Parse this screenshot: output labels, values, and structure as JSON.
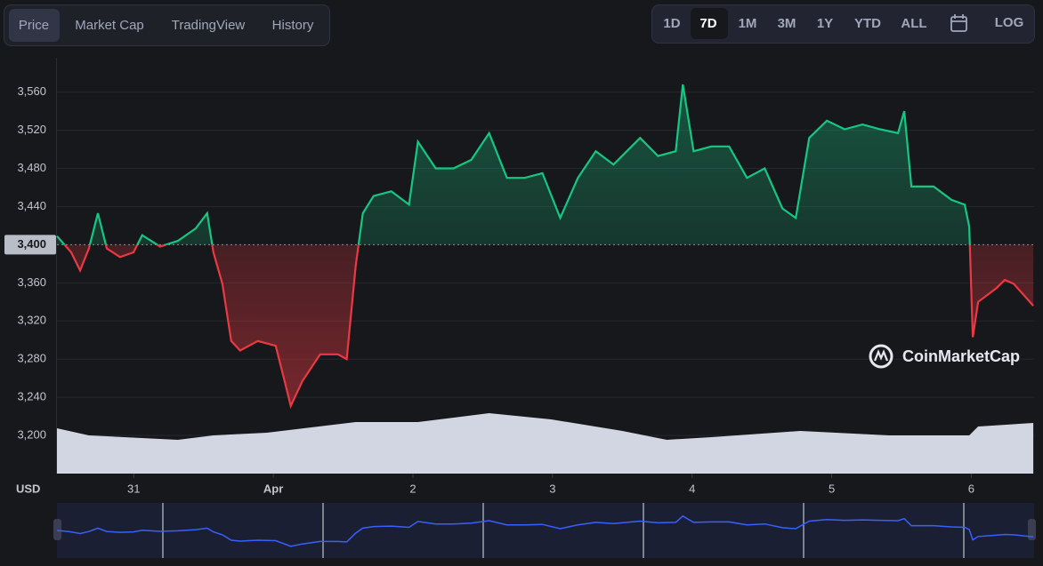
{
  "ui": {
    "tabs": [
      "Price",
      "Market Cap",
      "TradingView",
      "History"
    ],
    "ranges": [
      "1D",
      "7D",
      "1M",
      "3M",
      "1Y",
      "YTD",
      "ALL"
    ],
    "scale_toggle": "LOG",
    "watermark": "CoinMarketCap"
  },
  "chart_data": {
    "type": "line",
    "ylabel": "USD",
    "x": [
      30.45,
      30.552,
      30.616,
      30.679,
      30.743,
      30.807,
      30.902,
      30.998,
      31.061,
      31.189,
      31.316,
      31.444,
      31.526,
      31.571,
      31.635,
      31.698,
      31.762,
      31.889,
      32.017,
      32.081,
      32.125,
      32.208,
      32.335,
      32.463,
      32.526,
      32.59,
      32.641,
      32.718,
      32.845,
      32.972,
      33.036,
      33.163,
      33.291,
      33.418,
      33.546,
      33.673,
      33.8,
      33.928,
      34.055,
      34.182,
      34.31,
      34.437,
      34.628,
      34.756,
      34.883,
      34.934,
      35.011,
      35.138,
      35.265,
      35.393,
      35.52,
      35.647,
      35.743,
      35.839,
      35.966,
      36.093,
      36.221,
      36.348,
      36.475,
      36.52,
      36.571,
      36.73,
      36.858,
      36.953,
      36.985,
      37.011,
      37.049,
      37.176,
      37.24,
      37.304,
      37.444
    ],
    "series": [
      {
        "name": "Price",
        "up_color": "#16c784",
        "down_color": "#ea3943",
        "values": [
          3409,
          3392,
          3373,
          3396,
          3433,
          3396,
          3387,
          3392,
          3410,
          3398,
          3404,
          3417,
          3433,
          3392,
          3359,
          3299,
          3289,
          3299,
          3294,
          3257,
          3231,
          3257,
          3285,
          3285,
          3280,
          3378,
          3433,
          3451,
          3456,
          3442,
          3508,
          3480,
          3480,
          3489,
          3517,
          3470,
          3470,
          3475,
          3428,
          3470,
          3498,
          3484,
          3512,
          3493,
          3498,
          3568,
          3498,
          3503,
          3503,
          3470,
          3480,
          3438,
          3428,
          3512,
          3530,
          3521,
          3526,
          3521,
          3517,
          3540,
          3461,
          3461,
          3447,
          3442,
          3419,
          3303,
          3340,
          3354,
          3363,
          3359,
          3336
        ]
      }
    ],
    "baseline": {
      "value": 3400,
      "label": "3,400"
    },
    "volume": {
      "color": "#d1d6e2",
      "ylim": [
        0,
        100
      ],
      "x": [
        30.45,
        30.679,
        31.316,
        31.571,
        31.953,
        32.59,
        33.036,
        33.546,
        33.991,
        34.501,
        34.819,
        35.138,
        35.775,
        36.412,
        36.985,
        37.049,
        37.444
      ],
      "values": [
        51,
        43,
        38,
        43,
        46,
        58,
        58,
        68,
        61,
        48,
        38,
        41,
        48,
        43,
        43,
        53,
        57
      ]
    },
    "xlim": [
      30.45,
      37.45
    ],
    "xticks": [
      31,
      {
        "value": 32,
        "label": "Apr"
      },
      {
        "value": 33,
        "label": "2"
      },
      {
        "value": 34,
        "label": "3"
      },
      {
        "value": 35,
        "label": "4"
      },
      {
        "value": 36,
        "label": "5"
      },
      {
        "value": 37,
        "label": "6"
      }
    ],
    "ylim": [
      3160,
      3596
    ],
    "yticks": [
      {
        "value": 3200,
        "label": "3,200"
      },
      {
        "value": 3240,
        "label": "3,240"
      },
      {
        "value": 3280,
        "label": "3,280"
      },
      {
        "value": 3320,
        "label": "3,320"
      },
      {
        "value": 3360,
        "label": "3,360"
      },
      {
        "value": 3440,
        "label": "3,440"
      },
      {
        "value": 3480,
        "label": "3,480"
      },
      {
        "value": 3520,
        "label": "3,520"
      },
      {
        "value": 3560,
        "label": "3,560"
      }
    ],
    "grid": true,
    "navigator_color": "#3861fb"
  }
}
